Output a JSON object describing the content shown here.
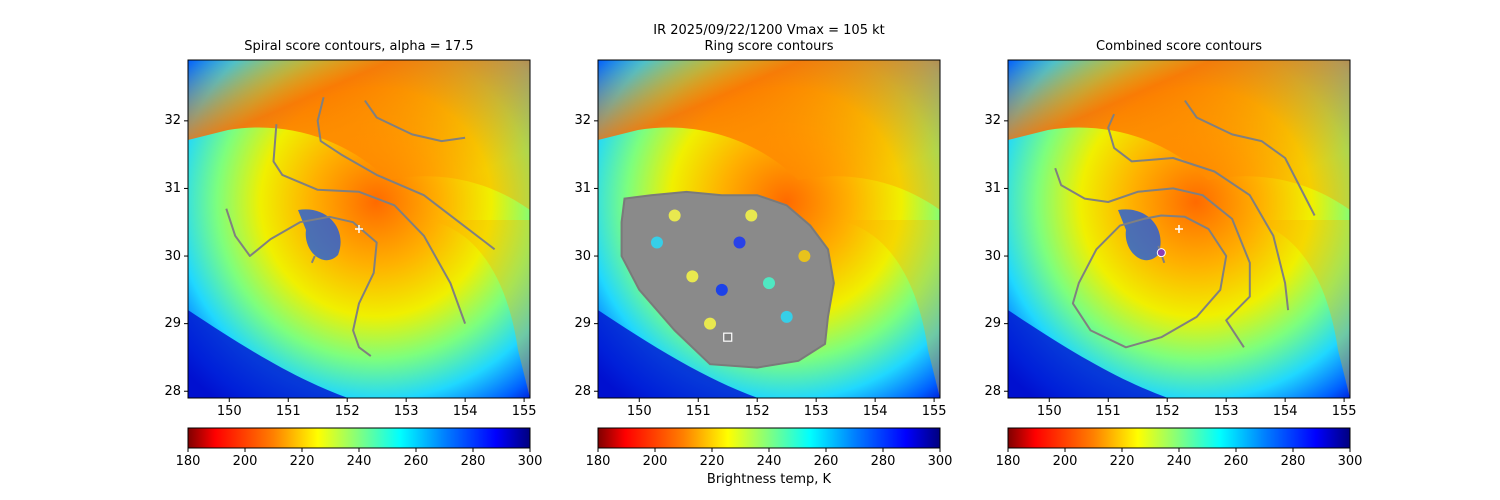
{
  "figure": {
    "suptitle_line1": "IR  2025/09/22/1200    Vmax = 105 kt"
  },
  "colormap": {
    "name": "jet",
    "stops": [
      "#7f0000",
      "#ff0000",
      "#ff8000",
      "#ffff00",
      "#80ff80",
      "#00ffff",
      "#0080ff",
      "#0000ff",
      "#00007f"
    ],
    "brightness_label": "Brightness temp, K"
  },
  "chart_data": [
    {
      "type": "heatmap",
      "title": "Spiral score contours, alpha = 17.5",
      "xlabel": "",
      "ylabel": "",
      "xlim": [
        149.3,
        155.1
      ],
      "ylim": [
        27.9,
        32.9
      ],
      "xticks": [
        "150",
        "151",
        "152",
        "153",
        "154",
        "155"
      ],
      "yticks": [
        "28",
        "29",
        "30",
        "31",
        "32"
      ],
      "colorbar": {
        "range": [
          180,
          300
        ],
        "ticks": [
          "180",
          "200",
          "220",
          "240",
          "260",
          "280",
          "300"
        ],
        "label": ""
      },
      "markers": [
        {
          "kind": "plus",
          "lon": 152.2,
          "lat": 30.4,
          "color": "#ffffff"
        }
      ],
      "contours": [
        [
          [
            152.3,
            32.3
          ],
          [
            152.5,
            32.05
          ],
          [
            153.1,
            31.8
          ],
          [
            153.6,
            31.7
          ],
          [
            154.0,
            31.75
          ]
        ],
        [
          [
            151.6,
            32.35
          ],
          [
            151.5,
            32.0
          ],
          [
            151.55,
            31.7
          ],
          [
            151.9,
            31.5
          ],
          [
            152.5,
            31.2
          ],
          [
            153.3,
            30.9
          ],
          [
            153.9,
            30.5
          ],
          [
            154.35,
            30.2
          ],
          [
            154.5,
            30.1
          ]
        ],
        [
          [
            150.8,
            31.95
          ],
          [
            150.75,
            31.4
          ],
          [
            150.9,
            31.2
          ],
          [
            151.5,
            30.98
          ],
          [
            152.2,
            30.95
          ],
          [
            152.8,
            30.75
          ],
          [
            153.3,
            30.3
          ],
          [
            153.75,
            29.6
          ],
          [
            154.0,
            29.0
          ]
        ],
        [
          [
            149.95,
            30.7
          ],
          [
            150.1,
            30.3
          ],
          [
            150.35,
            30.0
          ],
          [
            150.7,
            30.25
          ],
          [
            151.2,
            30.5
          ],
          [
            151.7,
            30.58
          ],
          [
            152.1,
            30.5
          ],
          [
            152.5,
            30.2
          ],
          [
            152.45,
            29.75
          ],
          [
            152.2,
            29.3
          ],
          [
            152.1,
            28.9
          ],
          [
            152.2,
            28.65
          ],
          [
            152.4,
            28.52
          ]
        ],
        [
          [
            151.45,
            30.0
          ],
          [
            151.4,
            29.9
          ]
        ]
      ]
    },
    {
      "type": "heatmap",
      "title": "Ring score contours",
      "xlabel": "",
      "ylabel": "",
      "xlim": [
        149.3,
        155.1
      ],
      "ylim": [
        27.9,
        32.9
      ],
      "xticks": [
        "150",
        "151",
        "152",
        "153",
        "154",
        "155"
      ],
      "yticks": [
        "28",
        "29",
        "30",
        "31",
        "32"
      ],
      "colorbar": {
        "range": [
          180,
          300
        ],
        "ticks": [
          "180",
          "200",
          "220",
          "240",
          "260",
          "280",
          "300"
        ],
        "label": "Brightness temp, K"
      },
      "markers": [
        {
          "kind": "square",
          "lon": 151.5,
          "lat": 28.8,
          "color": "#ffffff"
        }
      ],
      "contour_region": [
        [
          149.75,
          30.85
        ],
        [
          150.2,
          30.9
        ],
        [
          150.8,
          30.95
        ],
        [
          151.4,
          30.9
        ],
        [
          152.0,
          30.9
        ],
        [
          152.5,
          30.75
        ],
        [
          152.9,
          30.45
        ],
        [
          153.2,
          30.1
        ],
        [
          153.3,
          29.6
        ],
        [
          153.2,
          29.1
        ],
        [
          153.15,
          28.7
        ],
        [
          152.7,
          28.45
        ],
        [
          152.0,
          28.35
        ],
        [
          151.2,
          28.4
        ],
        [
          150.6,
          28.9
        ],
        [
          150.0,
          29.5
        ],
        [
          149.7,
          30.0
        ],
        [
          149.7,
          30.5
        ]
      ]
    },
    {
      "type": "heatmap",
      "title": "Combined score contours",
      "xlabel": "",
      "ylabel": "",
      "xlim": [
        149.3,
        155.1
      ],
      "ylim": [
        27.9,
        32.9
      ],
      "xticks": [
        "150",
        "151",
        "152",
        "153",
        "154",
        "155"
      ],
      "yticks": [
        "28",
        "29",
        "30",
        "31",
        "32"
      ],
      "colorbar": {
        "range": [
          180,
          300
        ],
        "ticks": [
          "180",
          "200",
          "220",
          "240",
          "260",
          "280",
          "300"
        ],
        "label": ""
      },
      "markers": [
        {
          "kind": "plus",
          "lon": 152.2,
          "lat": 30.4,
          "color": "#ffffff"
        },
        {
          "kind": "circle",
          "lon": 151.9,
          "lat": 30.05,
          "color": "#8a3fb8"
        }
      ],
      "contours": [
        [
          [
            152.3,
            32.3
          ],
          [
            152.5,
            32.05
          ],
          [
            153.1,
            31.8
          ],
          [
            153.6,
            31.7
          ],
          [
            154.0,
            31.45
          ],
          [
            154.5,
            30.6
          ]
        ],
        [
          [
            151.1,
            32.1
          ],
          [
            151.0,
            31.9
          ],
          [
            151.1,
            31.6
          ],
          [
            151.4,
            31.4
          ],
          [
            152.1,
            31.45
          ],
          [
            152.8,
            31.25
          ],
          [
            153.4,
            30.9
          ],
          [
            153.8,
            30.3
          ],
          [
            154.0,
            29.6
          ],
          [
            154.05,
            29.2
          ]
        ],
        [
          [
            150.1,
            31.3
          ],
          [
            150.2,
            31.05
          ],
          [
            150.6,
            30.85
          ],
          [
            151.0,
            30.8
          ],
          [
            151.5,
            30.95
          ],
          [
            152.1,
            31.0
          ],
          [
            152.6,
            30.9
          ],
          [
            153.1,
            30.55
          ],
          [
            153.4,
            29.9
          ],
          [
            153.4,
            29.4
          ],
          [
            153.0,
            29.05
          ],
          [
            153.3,
            28.65
          ]
        ],
        [
          [
            151.6,
            30.55
          ],
          [
            151.2,
            30.45
          ],
          [
            150.8,
            30.1
          ],
          [
            150.5,
            29.6
          ],
          [
            150.4,
            29.3
          ],
          [
            150.7,
            28.9
          ],
          [
            151.3,
            28.65
          ],
          [
            151.9,
            28.8
          ],
          [
            152.5,
            29.1
          ],
          [
            152.9,
            29.5
          ],
          [
            153.0,
            30.0
          ],
          [
            152.7,
            30.4
          ],
          [
            152.3,
            30.58
          ],
          [
            151.9,
            30.6
          ],
          [
            151.6,
            30.55
          ]
        ],
        [
          [
            151.85,
            30.15
          ],
          [
            151.95,
            29.9
          ]
        ]
      ]
    }
  ]
}
